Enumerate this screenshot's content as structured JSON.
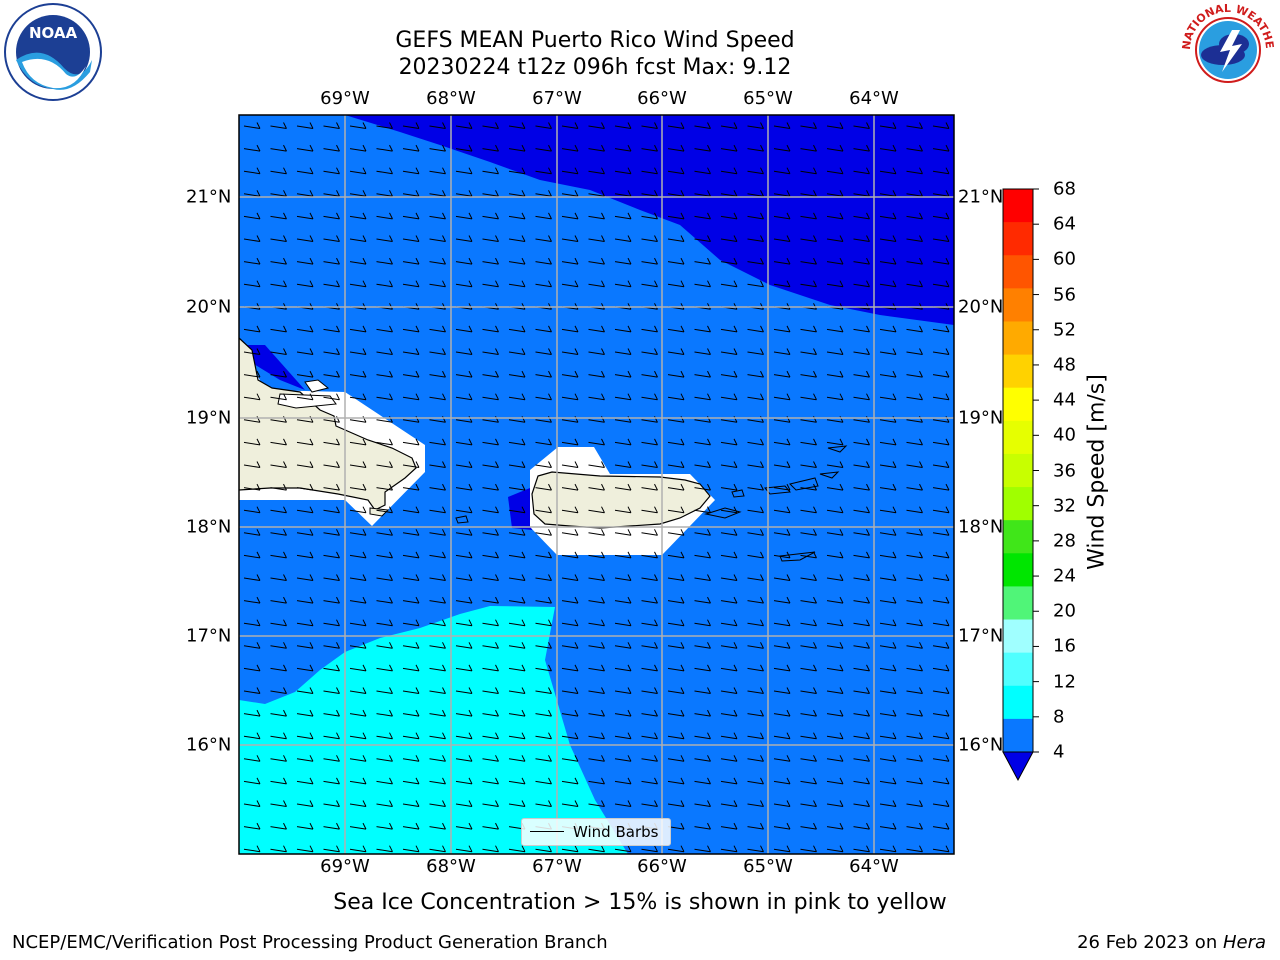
{
  "header": {
    "title_line1": "GEFS MEAN Puerto Rico Wind Speed",
    "title_line2": "20230224 t12z 096h fcst   Max: 9.12"
  },
  "logos": {
    "left": {
      "icon": "noaa-logo",
      "text": "NOAA"
    },
    "right": {
      "icon": "nws-logo",
      "text": "NATIONAL WEATHER SERVICE"
    }
  },
  "map": {
    "lon_labels": [
      "69°W",
      "68°W",
      "67°W",
      "66°W",
      "65°W",
      "64°W"
    ],
    "lat_labels": [
      "21°N",
      "20°N",
      "19°N",
      "18°N",
      "17°N",
      "16°N"
    ],
    "land_color": "#efefdc",
    "ocean_color_4_8": "#0a78ff",
    "ocean_color_lt4": "#0000e6",
    "ocean_color_8_12": "#00ffff"
  },
  "legend": {
    "label": "Wind Barbs"
  },
  "colorbar": {
    "title": "Wind Speed [m/s]",
    "ticks": [
      "68",
      "64",
      "60",
      "56",
      "52",
      "48",
      "44",
      "40",
      "36",
      "32",
      "28",
      "24",
      "20",
      "16",
      "12",
      "8",
      "4"
    ],
    "colors": [
      "#ff0000",
      "#ff2a00",
      "#ff5500",
      "#ff8000",
      "#ffaa00",
      "#ffd200",
      "#ffff00",
      "#e6ff00",
      "#c8ff00",
      "#a0ff00",
      "#40e619",
      "#00e600",
      "#50f578",
      "#a0ffff",
      "#50ffff",
      "#00ffff",
      "#0a78ff"
    ],
    "under_color": "#0000e6"
  },
  "notes": {
    "sea_ice": "Sea Ice Concentration > 15% is shown in pink to yellow",
    "footer_left": "NCEP/EMC/Verification Post Processing Product Generation Branch",
    "footer_right_prefix": "26 Feb 2023 on ",
    "footer_right_host": "Hera"
  }
}
